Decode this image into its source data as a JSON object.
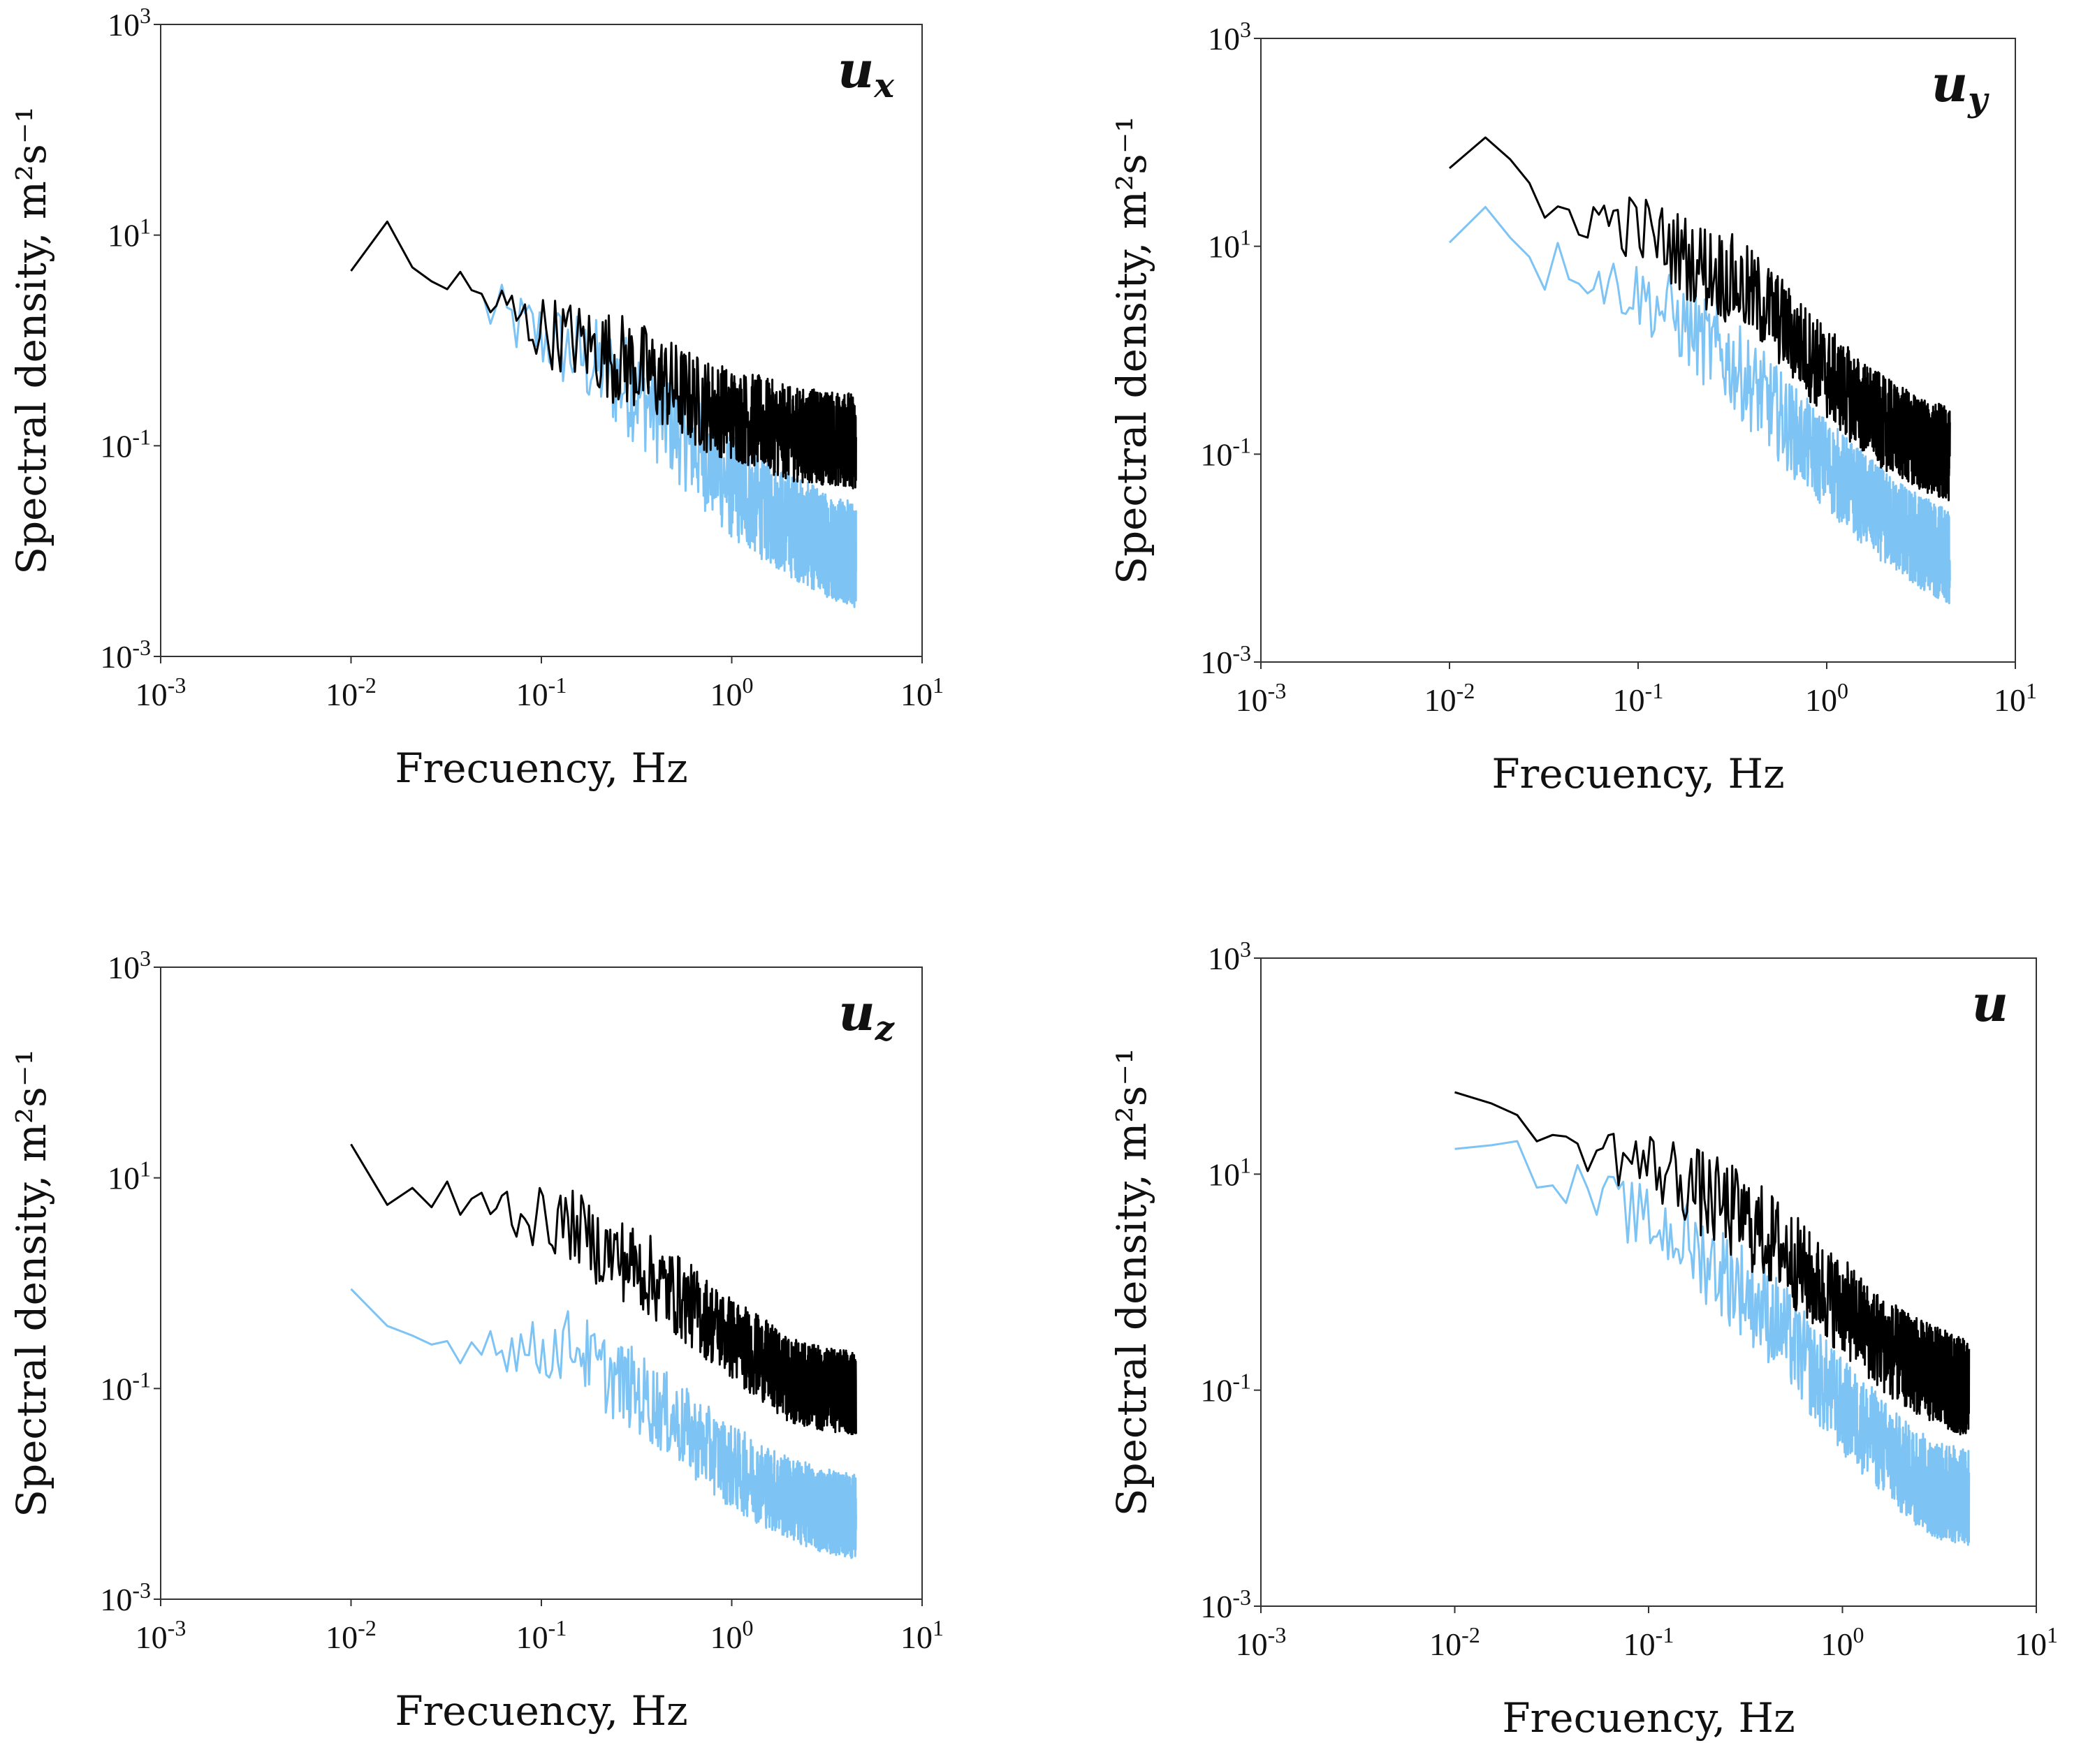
{
  "chart_data": [
    {
      "type": "line",
      "panel_label": "u",
      "panel_subscript": "x",
      "xlabel": "Frecuency, Hz",
      "ylabel": "Spectral density, m²s⁻¹",
      "xscale": "log",
      "yscale": "log",
      "xlim": [
        0.001,
        10
      ],
      "ylim": [
        0.001,
        1000
      ],
      "x_ticks": [
        "10^-3",
        "10^-2",
        "10^-1",
        "10^0",
        "10^1"
      ],
      "y_ticks": [
        "10^3",
        "10^1",
        "10^-1",
        "10^-3"
      ],
      "grid": false,
      "series": [
        {
          "color": "#000000",
          "x": [
            0.01,
            0.015,
            0.02,
            0.025,
            0.03,
            0.035,
            0.04,
            0.05,
            0.06,
            0.07,
            0.08,
            0.1,
            0.15,
            0.2,
            0.3,
            0.5,
            0.7,
            1.0,
            1.5,
            2.0,
            3.0,
            4.5
          ],
          "y": [
            5,
            12,
            4.5,
            5.5,
            3.2,
            3.8,
            3.0,
            2.5,
            2.0,
            1.8,
            1.5,
            1.3,
            1.0,
            0.8,
            0.6,
            0.35,
            0.25,
            0.2,
            0.16,
            0.13,
            0.12,
            0.11
          ],
          "noise": 0.45
        },
        {
          "color": "#7dc4f5",
          "x": [
            0.05,
            0.07,
            0.1,
            0.15,
            0.2,
            0.3,
            0.5,
            0.7,
            1.0,
            1.5,
            2.0,
            3.0,
            4.5
          ],
          "y": [
            2.0,
            1.5,
            1.1,
            0.75,
            0.55,
            0.35,
            0.15,
            0.08,
            0.04,
            0.025,
            0.018,
            0.012,
            0.009
          ],
          "noise": 0.5
        }
      ]
    },
    {
      "type": "line",
      "panel_label": "u",
      "panel_subscript": "y",
      "xlabel": "Frecuency, Hz",
      "ylabel": "Spectral density, m²s⁻¹",
      "xscale": "log",
      "yscale": "log",
      "xlim": [
        0.001,
        10
      ],
      "ylim": [
        0.001,
        1000
      ],
      "x_ticks": [
        "10^-3",
        "10^-2",
        "10^-1",
        "10^0",
        "10^1"
      ],
      "y_ticks": [
        "10^3",
        "10^1",
        "10^-1",
        "10^-3"
      ],
      "grid": false,
      "series": [
        {
          "color": "#000000",
          "x": [
            0.01,
            0.015,
            0.02,
            0.025,
            0.03,
            0.04,
            0.05,
            0.07,
            0.1,
            0.15,
            0.2,
            0.3,
            0.5,
            0.7,
            1.0,
            1.5,
            2.0,
            3.0,
            4.5
          ],
          "y": [
            60,
            110,
            55,
            40,
            15,
            25,
            20,
            18,
            15,
            10,
            7,
            5,
            2.5,
            1.2,
            0.6,
            0.3,
            0.2,
            0.13,
            0.1
          ],
          "noise": 0.45
        },
        {
          "color": "#7dc4f5",
          "x": [
            0.01,
            0.015,
            0.02,
            0.025,
            0.03,
            0.04,
            0.05,
            0.07,
            0.1,
            0.15,
            0.2,
            0.3,
            0.5,
            0.7,
            1.0,
            1.5,
            2.0,
            3.0,
            4.5
          ],
          "y": [
            12,
            25,
            15,
            13,
            5,
            8,
            6,
            4.5,
            3.5,
            2.2,
            1.4,
            0.8,
            0.3,
            0.15,
            0.08,
            0.04,
            0.025,
            0.015,
            0.01
          ],
          "noise": 0.45
        }
      ]
    },
    {
      "type": "line",
      "panel_label": "u",
      "panel_subscript": "z",
      "xlabel": "Frecuency, Hz",
      "ylabel": "Spectral density, m²s⁻¹",
      "xscale": "log",
      "yscale": "log",
      "xlim": [
        0.001,
        10
      ],
      "ylim": [
        0.001,
        1000
      ],
      "x_ticks": [
        "10^-3",
        "10^-2",
        "10^-1",
        "10^0",
        "10^1"
      ],
      "y_ticks": [
        "10^3",
        "10^1",
        "10^-1",
        "10^-3"
      ],
      "grid": false,
      "series": [
        {
          "color": "#000000",
          "x": [
            0.01,
            0.013,
            0.017,
            0.02,
            0.025,
            0.03,
            0.04,
            0.05,
            0.07,
            0.1,
            0.15,
            0.2,
            0.3,
            0.5,
            0.7,
            1.0,
            1.5,
            2.0,
            3.0,
            4.5
          ],
          "y": [
            20,
            9,
            5,
            10,
            3.5,
            8,
            4,
            7,
            5,
            4,
            3.5,
            2.2,
            1.5,
            0.8,
            0.5,
            0.3,
            0.18,
            0.12,
            0.1,
            0.09
          ],
          "noise": 0.4
        },
        {
          "color": "#7dc4f5",
          "x": [
            0.01,
            0.013,
            0.017,
            0.02,
            0.025,
            0.03,
            0.04,
            0.05,
            0.07,
            0.1,
            0.15,
            0.2,
            0.3,
            0.5,
            0.7,
            1.0,
            1.5,
            2.0,
            3.0,
            4.5
          ],
          "y": [
            0.9,
            0.6,
            0.3,
            0.35,
            0.2,
            0.35,
            0.25,
            0.3,
            0.25,
            0.22,
            0.28,
            0.15,
            0.1,
            0.05,
            0.03,
            0.018,
            0.012,
            0.009,
            0.007,
            0.006
          ],
          "noise": 0.4
        }
      ]
    },
    {
      "type": "line",
      "panel_label": "u",
      "panel_subscript": "",
      "xlabel": "Frecuency, Hz",
      "ylabel": "Spectral density, m²s⁻¹",
      "xscale": "log",
      "yscale": "log",
      "xlim": [
        0.001,
        10
      ],
      "ylim": [
        0.001,
        1000
      ],
      "x_ticks": [
        "10^-3",
        "10^-2",
        "10^-1",
        "10^0",
        "10^1"
      ],
      "y_ticks": [
        "10^3",
        "10^1",
        "10^-1",
        "10^-3"
      ],
      "grid": false,
      "series": [
        {
          "color": "#000000",
          "x": [
            0.01,
            0.015,
            0.02,
            0.025,
            0.03,
            0.04,
            0.05,
            0.07,
            0.1,
            0.15,
            0.2,
            0.3,
            0.5,
            0.7,
            1.0,
            1.5,
            2.0,
            3.0,
            4.5
          ],
          "y": [
            50,
            60,
            40,
            25,
            15,
            20,
            18,
            15,
            12,
            9,
            6,
            4,
            2,
            1,
            0.6,
            0.3,
            0.2,
            0.14,
            0.1
          ],
          "noise": 0.45
        },
        {
          "color": "#7dc4f5",
          "x": [
            0.01,
            0.015,
            0.02,
            0.025,
            0.03,
            0.04,
            0.05,
            0.07,
            0.1,
            0.15,
            0.2,
            0.3,
            0.5,
            0.7,
            1.0,
            1.5,
            2.0,
            3.0,
            4.5
          ],
          "y": [
            18,
            25,
            16,
            12,
            6,
            8,
            6,
            5,
            3.5,
            2.5,
            1.6,
            0.9,
            0.35,
            0.15,
            0.07,
            0.035,
            0.02,
            0.012,
            0.01
          ],
          "noise": 0.45
        }
      ]
    }
  ]
}
